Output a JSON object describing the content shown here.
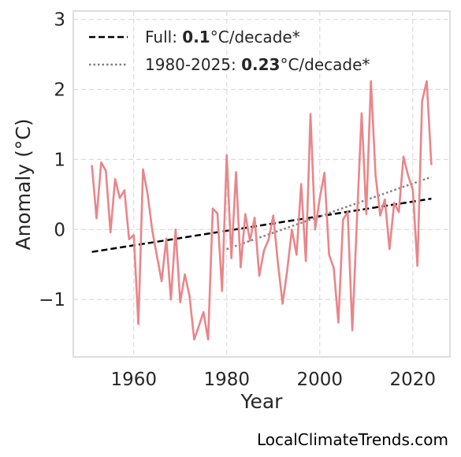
{
  "chart_data": {
    "type": "line",
    "xlabel": "Year",
    "ylabel": "Anomaly (°C)",
    "xlim": [
      1947,
      2028
    ],
    "ylim": [
      -1.82,
      3.12
    ],
    "xticks": [
      1960,
      1980,
      2000,
      2020
    ],
    "yticks": [
      -1,
      0,
      1,
      2,
      3
    ],
    "ytick_labels": [
      "−1",
      "0",
      "1",
      "2",
      "3"
    ],
    "grid": true,
    "legend_position": "top-left",
    "colors": {
      "series": "#e8868a",
      "full_trend": "#000000",
      "recent_trend": "#808080"
    },
    "series": [
      {
        "x": [
          1951,
          1952,
          1953,
          1954,
          1955,
          1956,
          1957,
          1958,
          1959,
          1960,
          1961,
          1962,
          1963,
          1964,
          1965,
          1966,
          1967,
          1968,
          1969,
          1970,
          1971,
          1972,
          1973,
          1974,
          1975,
          1976,
          1977,
          1978,
          1979,
          1980,
          1981,
          1982,
          1983,
          1984,
          1985,
          1986,
          1987,
          1988,
          1989,
          1990,
          1991,
          1992,
          1993,
          1994,
          1995,
          1996,
          1997,
          1998,
          1999,
          2000,
          2001,
          2002,
          2003,
          2004,
          2005,
          2006,
          2007,
          2008,
          2009,
          2010,
          2011,
          2012,
          2013,
          2014,
          2015,
          2016,
          2017,
          2018,
          2019,
          2020,
          2021,
          2022,
          2023,
          2024
        ],
        "values": [
          0.92,
          0.16,
          0.96,
          0.84,
          -0.04,
          0.72,
          0.45,
          0.56,
          -0.14,
          -0.08,
          -1.35,
          0.86,
          0.5,
          -0.02,
          -0.38,
          -0.74,
          -0.13,
          -1.0,
          0.0,
          -1.04,
          -0.64,
          -0.95,
          -1.57,
          -1.38,
          -1.18,
          -1.57,
          0.3,
          0.23,
          -0.88,
          1.06,
          -0.41,
          0.82,
          -0.54,
          0.22,
          -0.16,
          0.17,
          -0.66,
          -0.3,
          -0.14,
          0.2,
          -0.48,
          -1.06,
          -0.58,
          0.0,
          -0.36,
          0.65,
          -0.45,
          1.65,
          0.0,
          0.45,
          0.81,
          -0.36,
          -0.55,
          -1.33,
          0.14,
          0.25,
          -1.44,
          0.15,
          1.66,
          0.22,
          2.12,
          0.77,
          0.2,
          0.43,
          -0.28,
          0.38,
          0.25,
          1.04,
          0.77,
          0.57,
          -0.52,
          1.83,
          2.12,
          0.92
        ]
      }
    ],
    "trends": [
      {
        "label_prefix": "Full: ",
        "label_value": "0.1",
        "label_suffix": "°C/decade*",
        "style": "dashed",
        "x": [
          1951,
          2024
        ],
        "y": [
          -0.32,
          0.44
        ]
      },
      {
        "label_prefix": "1980-2025: ",
        "label_value": "0.23",
        "label_suffix": "°C/decade*",
        "style": "dotted",
        "x": [
          1980,
          2024
        ],
        "y": [
          -0.28,
          0.75
        ]
      }
    ]
  },
  "watermark": "LocalClimateTrends.com"
}
